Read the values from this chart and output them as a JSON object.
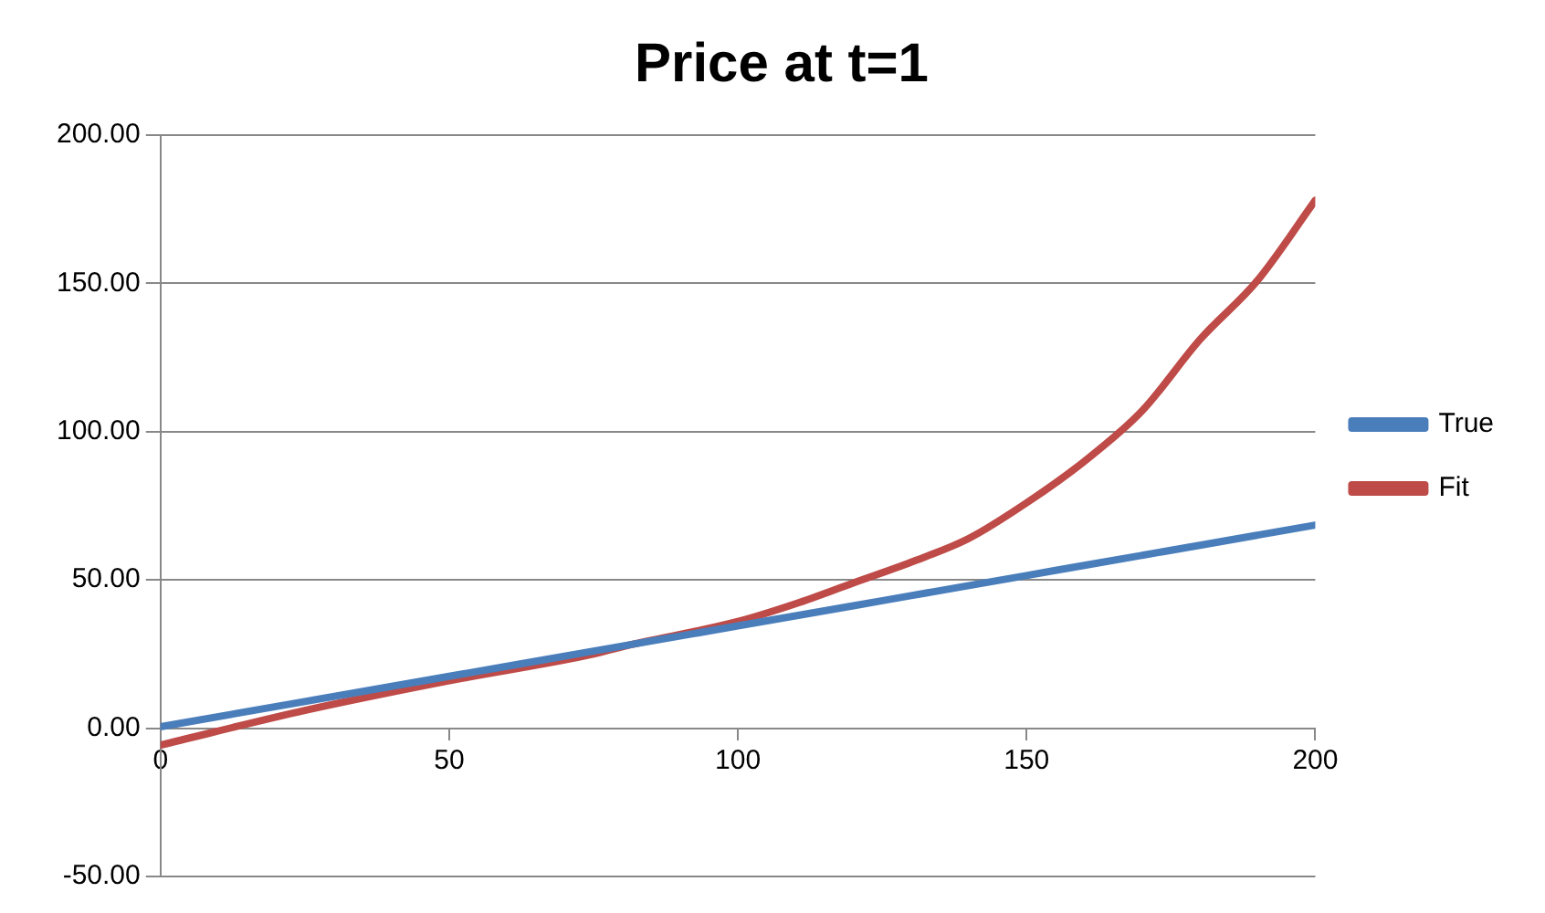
{
  "chart_data": {
    "type": "line",
    "title": "Price at t=1",
    "x": [
      0,
      25,
      50,
      75,
      80,
      100,
      110,
      120,
      130,
      140,
      150,
      160,
      170,
      180,
      190,
      200
    ],
    "series": [
      {
        "name": "True",
        "color": "#4a7ebb",
        "values": [
          0.5,
          9,
          17.5,
          26,
          27.7,
          34.5,
          37.9,
          41.3,
          44.7,
          48.1,
          51.5,
          54.9,
          58.3,
          61.7,
          65.1,
          68.5
        ]
      },
      {
        "name": "Fit",
        "color": "#be4b48",
        "values": [
          -5.7,
          6,
          16,
          25,
          27.5,
          36,
          42,
          49,
          56,
          64,
          76,
          90,
          107,
          131,
          151,
          178
        ]
      }
    ],
    "xlim": [
      0,
      200
    ],
    "xticks": [
      0,
      50,
      100,
      150,
      200
    ],
    "ylim": [
      -50,
      200
    ],
    "yticks": [
      {
        "value": -50,
        "label": "-50.00"
      },
      {
        "value": 0,
        "label": "0.00"
      },
      {
        "value": 50,
        "label": "50.00"
      },
      {
        "value": 100,
        "label": "100.00"
      },
      {
        "value": 150,
        "label": "150.00"
      },
      {
        "value": 200,
        "label": "200.00"
      }
    ],
    "grid": "y",
    "legend": "right",
    "marker": "none",
    "line_style": "solid"
  }
}
